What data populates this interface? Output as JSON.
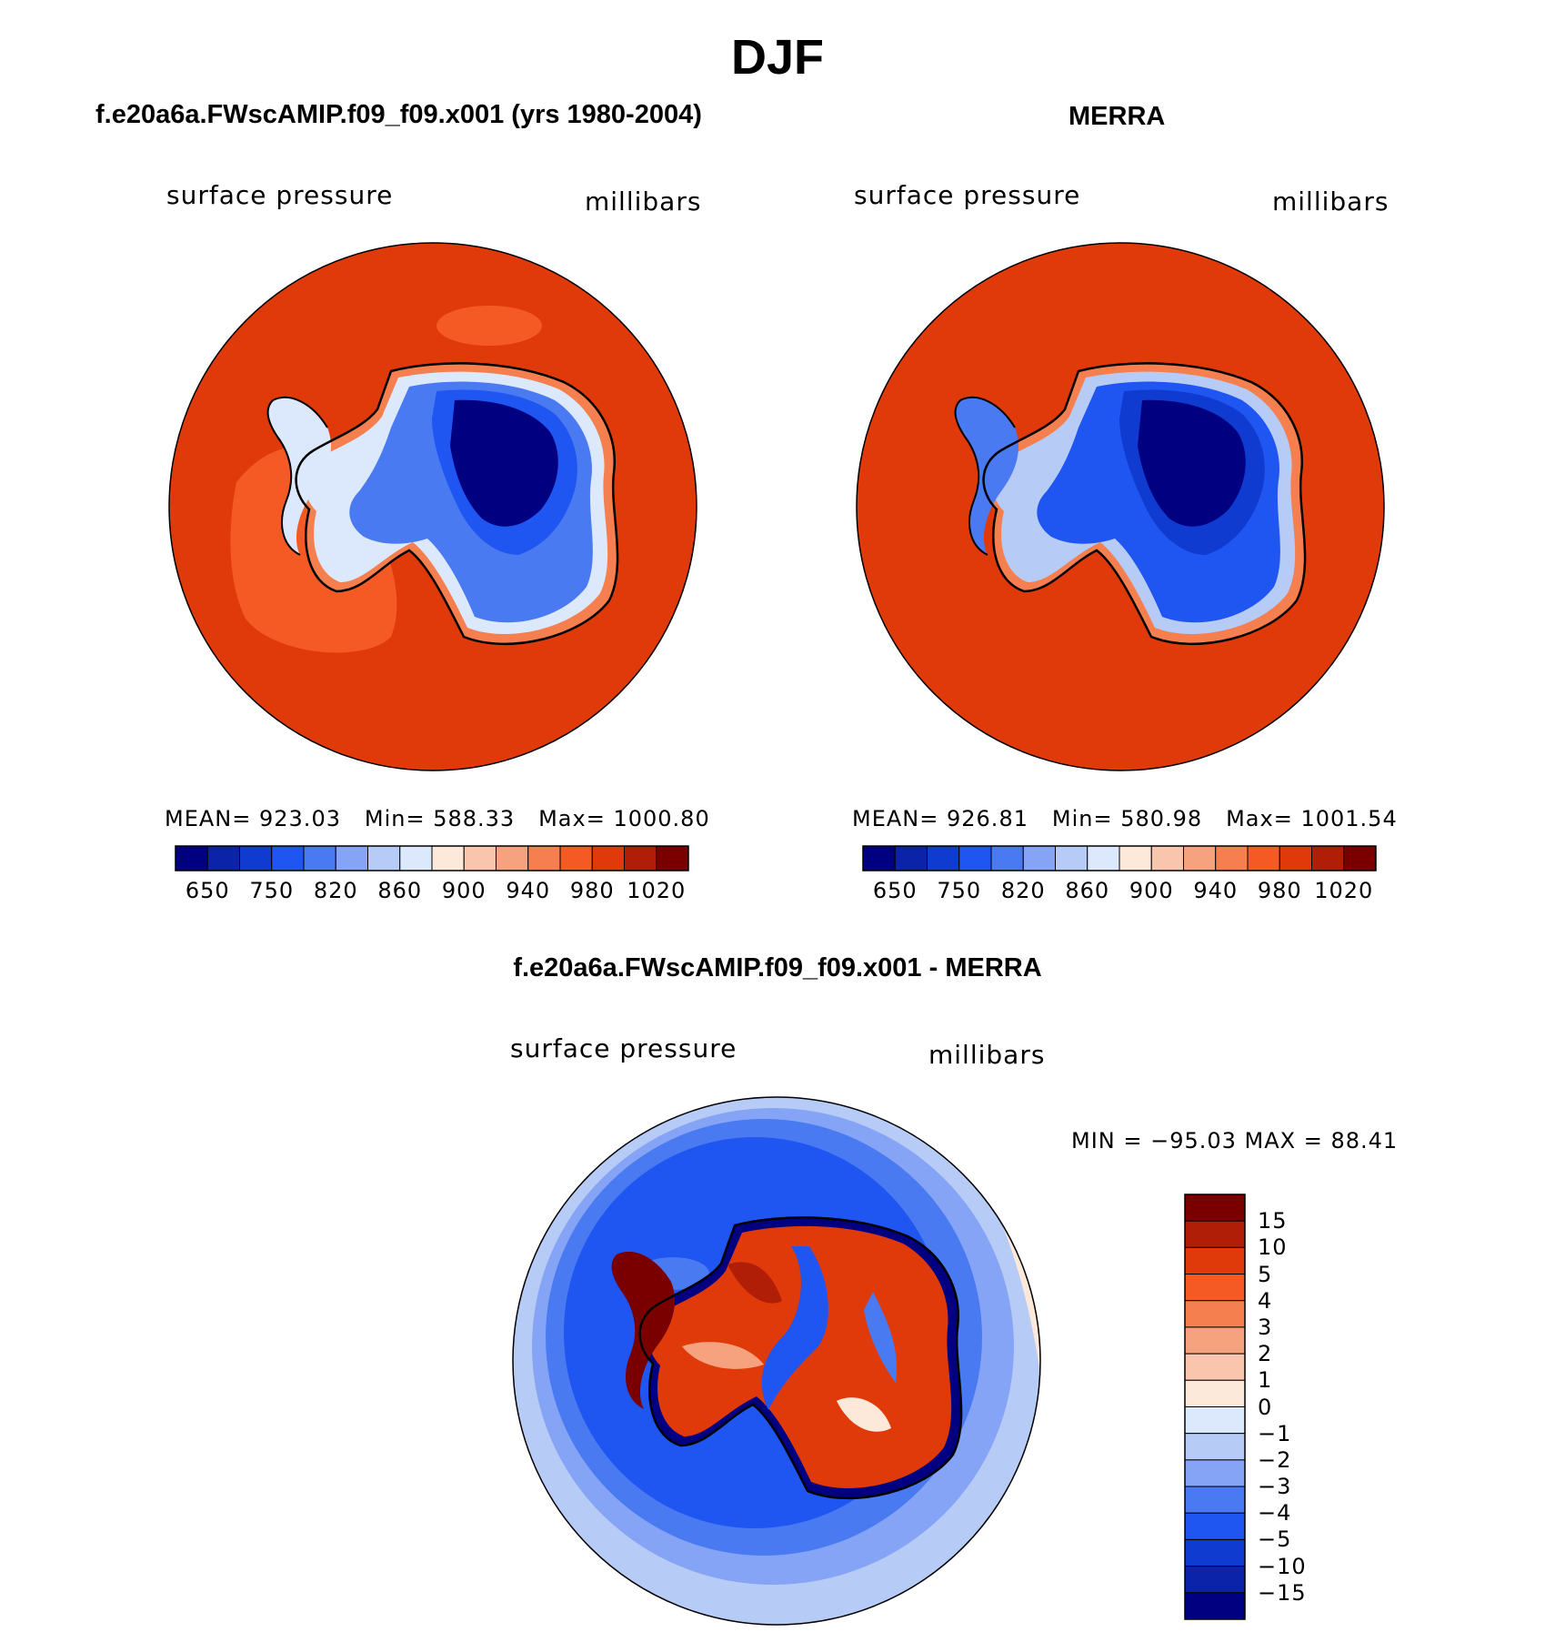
{
  "figure": {
    "title": "DJF"
  },
  "panels": {
    "model": {
      "title": "f.e20a6a.FWscAMIP.f09_f09.x001 (yrs 1980-2004)",
      "variable": "surface pressure",
      "units": "millibars",
      "stats": {
        "mean_label": "MEAN=",
        "mean": "923.03",
        "min_label": "Min=",
        "min": "588.33",
        "max_label": "Max=",
        "max": "1000.80"
      }
    },
    "obs": {
      "title": "MERRA",
      "variable": "surface pressure",
      "units": "millibars",
      "stats": {
        "mean_label": "MEAN=",
        "mean": "926.81",
        "min_label": "Min=",
        "min": "580.98",
        "max_label": "Max=",
        "max": "1001.54"
      }
    },
    "diff": {
      "title": "f.e20a6a.FWscAMIP.f09_f09.x001 - MERRA",
      "variable": "surface pressure",
      "units": "millibars",
      "minmax": "MIN = −95.03 MAX =   88.41"
    }
  },
  "colorbars": {
    "abs": {
      "ticks": [
        "650",
        "750",
        "820",
        "860",
        "900",
        "940",
        "980",
        "1020"
      ],
      "colors": [
        "#000080",
        "#0a23a8",
        "#0f3bd1",
        "#1f55f0",
        "#4a7af2",
        "#86a4f5",
        "#b7cbf7",
        "#dce8fb",
        "#fde9d9",
        "#f9c5ad",
        "#f7a27e",
        "#f57f4f",
        "#f55a25",
        "#e03a0a",
        "#b01e08",
        "#7a0000"
      ]
    },
    "diff": {
      "ticks": [
        "15",
        "10",
        "5",
        "4",
        "3",
        "2",
        "1",
        "0",
        "−1",
        "−2",
        "−3",
        "−4",
        "−5",
        "−10",
        "−15"
      ],
      "colors": [
        "#7a0000",
        "#b01e08",
        "#e03a0a",
        "#f55a25",
        "#f57f4f",
        "#f7a27e",
        "#f9c5ad",
        "#fde9d9",
        "#dce8fb",
        "#b7cbf7",
        "#86a4f5",
        "#4a7af2",
        "#1f55f0",
        "#0f3bd1",
        "#0a23a8",
        "#000080"
      ]
    }
  }
}
